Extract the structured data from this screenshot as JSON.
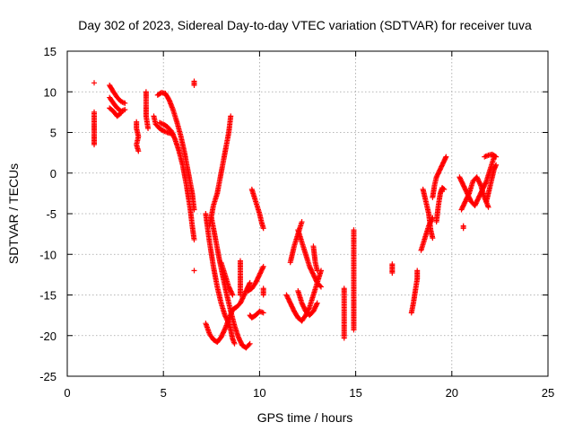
{
  "chart_data": {
    "type": "scatter",
    "title": "Day 302 of 2023, Sidereal Day-to-day VTEC variation (SDTVAR) for receiver tuva",
    "xlabel": "GPS time / hours",
    "ylabel": "SDTVAR / TECUs",
    "xlim": [
      0,
      25
    ],
    "ylim": [
      -25,
      15
    ],
    "xticks": [
      0,
      5,
      10,
      15,
      20,
      25
    ],
    "yticks": [
      -25,
      -20,
      -15,
      -10,
      -5,
      0,
      5,
      10,
      15
    ],
    "grid": true,
    "marker": "+",
    "color": "#ff0000",
    "tracks": [
      {
        "name": "a",
        "points": [
          [
            1.4,
            11.1
          ]
        ]
      },
      {
        "name": "b",
        "points": [
          [
            1.4,
            7.5
          ],
          [
            1.4,
            5.8
          ],
          [
            1.4,
            3.5
          ]
        ]
      },
      {
        "name": "c",
        "points": [
          [
            2.2,
            10.8
          ],
          [
            2.4,
            10.0
          ],
          [
            2.6,
            9.3
          ],
          [
            2.8,
            8.8
          ],
          [
            3.0,
            8.6
          ]
        ]
      },
      {
        "name": "d",
        "points": [
          [
            2.2,
            9.3
          ],
          [
            2.4,
            8.6
          ],
          [
            2.6,
            8.0
          ],
          [
            2.8,
            7.6
          ],
          [
            3.0,
            7.8
          ]
        ]
      },
      {
        "name": "e",
        "points": [
          [
            2.2,
            8.0
          ],
          [
            2.4,
            7.6
          ],
          [
            2.6,
            7.0
          ],
          [
            2.8,
            7.4
          ]
        ]
      },
      {
        "name": "f",
        "points": [
          [
            3.6,
            6.3
          ],
          [
            3.6,
            5.5
          ],
          [
            3.7,
            4.5
          ],
          [
            3.6,
            3.5
          ],
          [
            3.7,
            2.7
          ]
        ]
      },
      {
        "name": "g",
        "points": [
          [
            4.1,
            10.0
          ],
          [
            4.1,
            8.5
          ],
          [
            4.1,
            7.0
          ],
          [
            4.2,
            5.5
          ]
        ]
      },
      {
        "name": "h",
        "points": [
          [
            4.5,
            7.0
          ],
          [
            4.6,
            6.0
          ],
          [
            4.8,
            5.5
          ],
          [
            5.0,
            5.2
          ],
          [
            5.2,
            5.0
          ],
          [
            5.5,
            4.8
          ]
        ]
      },
      {
        "name": "i",
        "points": [
          [
            4.7,
            9.6
          ],
          [
            4.9,
            9.9
          ],
          [
            5.1,
            9.8
          ],
          [
            5.3,
            9.0
          ],
          [
            5.5,
            7.8
          ],
          [
            5.7,
            6.3
          ],
          [
            5.9,
            4.6
          ],
          [
            6.1,
            2.5
          ],
          [
            6.3,
            0.0
          ],
          [
            6.5,
            -2.5
          ],
          [
            6.6,
            -4.5
          ]
        ]
      },
      {
        "name": "j",
        "points": [
          [
            4.8,
            6.2
          ],
          [
            5.0,
            6.0
          ],
          [
            5.2,
            5.7
          ],
          [
            5.4,
            5.2
          ],
          [
            5.6,
            4.2
          ],
          [
            5.8,
            2.8
          ],
          [
            6.0,
            1.0
          ],
          [
            6.2,
            -1.5
          ],
          [
            6.4,
            -4.5
          ],
          [
            6.5,
            -6.5
          ],
          [
            6.6,
            -8.2
          ]
        ]
      },
      {
        "name": "k",
        "points": [
          [
            6.6,
            11.3
          ],
          [
            6.6,
            10.8
          ]
        ]
      },
      {
        "name": "l",
        "points": [
          [
            6.6,
            -12.0
          ]
        ]
      },
      {
        "name": "m",
        "points": [
          [
            7.2,
            -5.0
          ],
          [
            7.3,
            -6.8
          ],
          [
            7.4,
            -8.5
          ],
          [
            7.6,
            -11.5
          ],
          [
            7.8,
            -14.0
          ],
          [
            8.0,
            -16.0
          ],
          [
            8.2,
            -17.5
          ],
          [
            8.4,
            -18.5
          ],
          [
            8.5,
            -19.3
          ],
          [
            8.6,
            -20.4
          ],
          [
            8.7,
            -21.0
          ]
        ]
      },
      {
        "name": "n",
        "points": [
          [
            7.2,
            -18.5
          ],
          [
            7.4,
            -19.8
          ],
          [
            7.6,
            -20.5
          ],
          [
            7.8,
            -20.8
          ],
          [
            8.0,
            -20.2
          ],
          [
            8.2,
            -19.2
          ],
          [
            8.4,
            -18.0
          ],
          [
            8.6,
            -16.8
          ],
          [
            8.8,
            -16.5
          ],
          [
            9.0,
            -16.0
          ],
          [
            9.2,
            -15.0
          ],
          [
            9.4,
            -14.0
          ],
          [
            9.5,
            -13.5
          ]
        ]
      },
      {
        "name": "o",
        "points": [
          [
            7.5,
            -5.5
          ],
          [
            7.7,
            -8.0
          ],
          [
            7.9,
            -10.5
          ],
          [
            8.1,
            -12.8
          ],
          [
            8.3,
            -15.0
          ],
          [
            8.5,
            -17.0
          ],
          [
            8.7,
            -18.8
          ],
          [
            8.9,
            -20.2
          ],
          [
            9.1,
            -21.2
          ],
          [
            9.3,
            -21.5
          ],
          [
            9.5,
            -21.0
          ]
        ]
      },
      {
        "name": "p",
        "points": [
          [
            7.4,
            -6.5
          ],
          [
            7.6,
            -4.0
          ],
          [
            7.8,
            -2.5
          ],
          [
            8.0,
            0.0
          ],
          [
            8.2,
            2.5
          ],
          [
            8.4,
            5.0
          ],
          [
            8.5,
            7.0
          ]
        ]
      },
      {
        "name": "q",
        "points": [
          [
            8.0,
            -11.0
          ],
          [
            8.2,
            -12.5
          ],
          [
            8.4,
            -14.0
          ],
          [
            8.6,
            -15.0
          ]
        ]
      },
      {
        "name": "r",
        "points": [
          [
            9.0,
            -10.8
          ],
          [
            9.0,
            -11.8
          ],
          [
            9.0,
            -12.8
          ],
          [
            9.0,
            -14.0
          ],
          [
            9.0,
            -15.0
          ]
        ]
      },
      {
        "name": "s",
        "points": [
          [
            9.4,
            -14.5
          ],
          [
            9.6,
            -14.2
          ],
          [
            9.8,
            -13.5
          ],
          [
            10.0,
            -12.5
          ],
          [
            10.2,
            -11.5
          ]
        ]
      },
      {
        "name": "t",
        "points": [
          [
            9.5,
            -17.5
          ],
          [
            9.6,
            -17.8
          ],
          [
            9.8,
            -17.5
          ],
          [
            10.0,
            -17.0
          ],
          [
            10.2,
            -17.2
          ]
        ]
      },
      {
        "name": "u",
        "points": [
          [
            9.6,
            -2.0
          ],
          [
            9.8,
            -3.5
          ],
          [
            10.0,
            -5.0
          ],
          [
            10.1,
            -6.0
          ],
          [
            10.2,
            -6.8
          ]
        ]
      },
      {
        "name": "v",
        "points": [
          [
            10.2,
            -14.2
          ],
          [
            10.2,
            -15.0
          ]
        ]
      },
      {
        "name": "w",
        "points": [
          [
            11.4,
            -15.0
          ],
          [
            11.6,
            -16.0
          ],
          [
            11.8,
            -17.0
          ],
          [
            12.0,
            -17.8
          ],
          [
            12.2,
            -18.2
          ],
          [
            12.4,
            -17.5
          ],
          [
            12.6,
            -16.5
          ],
          [
            12.8,
            -15.0
          ],
          [
            13.0,
            -13.5
          ],
          [
            13.2,
            -12.0
          ]
        ]
      },
      {
        "name": "x",
        "points": [
          [
            11.6,
            -11.0
          ],
          [
            11.8,
            -9.0
          ],
          [
            12.0,
            -7.5
          ],
          [
            12.2,
            -6.0
          ]
        ]
      },
      {
        "name": "y",
        "points": [
          [
            12.0,
            -7.0
          ],
          [
            12.2,
            -8.5
          ],
          [
            12.4,
            -10.0
          ],
          [
            12.6,
            -11.5
          ],
          [
            12.8,
            -12.5
          ],
          [
            13.0,
            -13.5
          ],
          [
            13.2,
            -14.0
          ]
        ]
      },
      {
        "name": "z",
        "points": [
          [
            12.0,
            -14.5
          ],
          [
            12.2,
            -16.0
          ],
          [
            12.4,
            -17.0
          ],
          [
            12.6,
            -17.5
          ],
          [
            12.8,
            -17.0
          ],
          [
            13.0,
            -16.0
          ]
        ]
      },
      {
        "name": "aa",
        "points": [
          [
            12.8,
            -9.0
          ],
          [
            12.9,
            -11.0
          ],
          [
            13.0,
            -12.0
          ]
        ]
      },
      {
        "name": "ab",
        "points": [
          [
            14.4,
            -14.2
          ],
          [
            14.4,
            -15.7
          ],
          [
            14.4,
            -20.3
          ]
        ]
      },
      {
        "name": "ac",
        "points": [
          [
            14.9,
            -7.0
          ],
          [
            14.9,
            -15.5
          ],
          [
            14.9,
            -19.3
          ]
        ]
      },
      {
        "name": "ad",
        "points": [
          [
            16.9,
            -11.2
          ],
          [
            16.9,
            -12.3
          ]
        ]
      },
      {
        "name": "ae",
        "points": [
          [
            17.9,
            -17.2
          ],
          [
            18.0,
            -16.0
          ],
          [
            18.1,
            -14.5
          ],
          [
            18.2,
            -13.0
          ],
          [
            18.2,
            -12.0
          ]
        ]
      },
      {
        "name": "af",
        "points": [
          [
            18.5,
            -2.0
          ],
          [
            18.6,
            -3.0
          ],
          [
            18.8,
            -5.0
          ],
          [
            18.9,
            -7.0
          ],
          [
            19.0,
            -8.0
          ]
        ]
      },
      {
        "name": "ag",
        "points": [
          [
            18.4,
            -9.5
          ],
          [
            18.6,
            -8.0
          ],
          [
            18.8,
            -6.5
          ],
          [
            19.0,
            -5.5
          ]
        ]
      },
      {
        "name": "ah",
        "points": [
          [
            19.0,
            -3.0
          ],
          [
            19.1,
            -1.5
          ],
          [
            19.2,
            -0.5
          ],
          [
            19.4,
            0.5
          ],
          [
            19.6,
            1.5
          ],
          [
            19.7,
            2.0
          ]
        ]
      },
      {
        "name": "ai",
        "points": [
          [
            19.2,
            -6.0
          ],
          [
            19.3,
            -4.0
          ],
          [
            19.4,
            -2.5
          ],
          [
            19.5,
            -1.8
          ],
          [
            19.6,
            -2.0
          ]
        ]
      },
      {
        "name": "aj",
        "points": [
          [
            20.4,
            -0.5
          ],
          [
            20.6,
            -1.5
          ],
          [
            20.8,
            -2.5
          ],
          [
            21.0,
            -3.5
          ],
          [
            21.2,
            -4.0
          ],
          [
            21.4,
            -3.0
          ],
          [
            21.6,
            -2.0
          ],
          [
            21.8,
            -1.0
          ],
          [
            22.0,
            0.5
          ],
          [
            22.2,
            2.0
          ]
        ]
      },
      {
        "name": "ak",
        "points": [
          [
            20.5,
            -4.5
          ],
          [
            20.7,
            -3.5
          ],
          [
            20.9,
            -2.5
          ],
          [
            21.1,
            -1.0
          ],
          [
            21.3,
            -0.5
          ],
          [
            21.5,
            -1.5
          ],
          [
            21.7,
            -3.0
          ],
          [
            21.9,
            -4.2
          ]
        ]
      },
      {
        "name": "al",
        "points": [
          [
            20.6,
            -6.5
          ],
          [
            20.6,
            -6.8
          ]
        ]
      },
      {
        "name": "am",
        "points": [
          [
            21.8,
            -3.5
          ],
          [
            21.9,
            -2.5
          ],
          [
            22.0,
            -1.5
          ],
          [
            22.1,
            -0.5
          ],
          [
            22.2,
            0.5
          ],
          [
            22.3,
            1.0
          ]
        ]
      },
      {
        "name": "an",
        "points": [
          [
            21.7,
            2.0
          ],
          [
            21.9,
            2.2
          ],
          [
            22.1,
            2.3
          ],
          [
            22.3,
            2.0
          ]
        ]
      }
    ]
  }
}
